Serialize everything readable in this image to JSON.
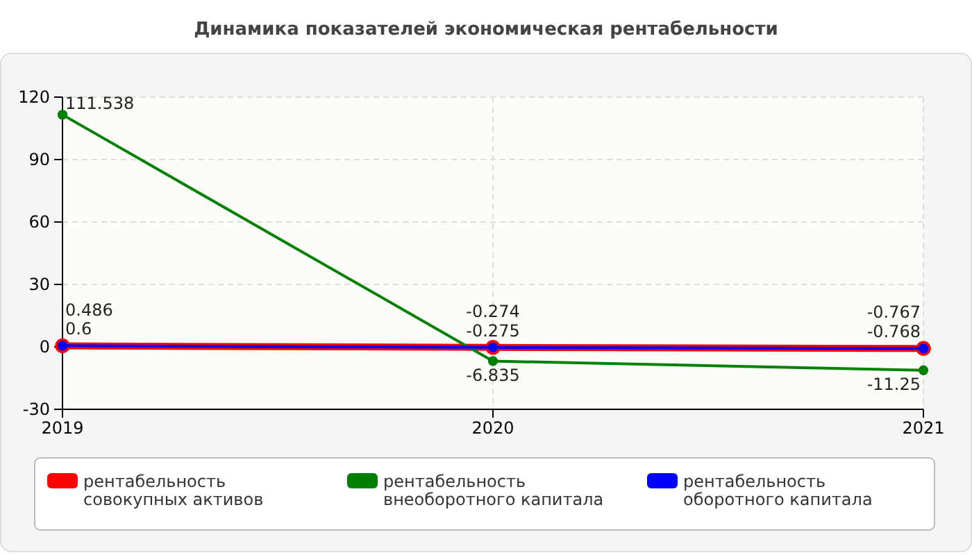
{
  "chart_data": {
    "type": "line",
    "title": "Динамика показателей экономическая рентабельности",
    "x": [
      2019,
      2020,
      2021
    ],
    "xlim": [
      2019,
      2021
    ],
    "xticks": [
      2019,
      2020,
      2021
    ],
    "ylim": [
      -30,
      120
    ],
    "yticks": [
      -30,
      0,
      30,
      60,
      90,
      120
    ],
    "series": [
      {
        "name": "рентабельность совокупных активов",
        "color": "#ff0000",
        "values": [
          0.486,
          -0.274,
          -0.767
        ]
      },
      {
        "name": "рентабельность внеоборотного капитала",
        "color": "#008000",
        "values": [
          111.538,
          -6.835,
          -11.25
        ]
      },
      {
        "name": "рентабельность оборотного капитала",
        "color": "#0000ff",
        "values": [
          0.6,
          -0.275,
          -0.768
        ]
      }
    ],
    "data_labels": true,
    "grid": true,
    "legend": "bottom",
    "marker": "circle"
  }
}
